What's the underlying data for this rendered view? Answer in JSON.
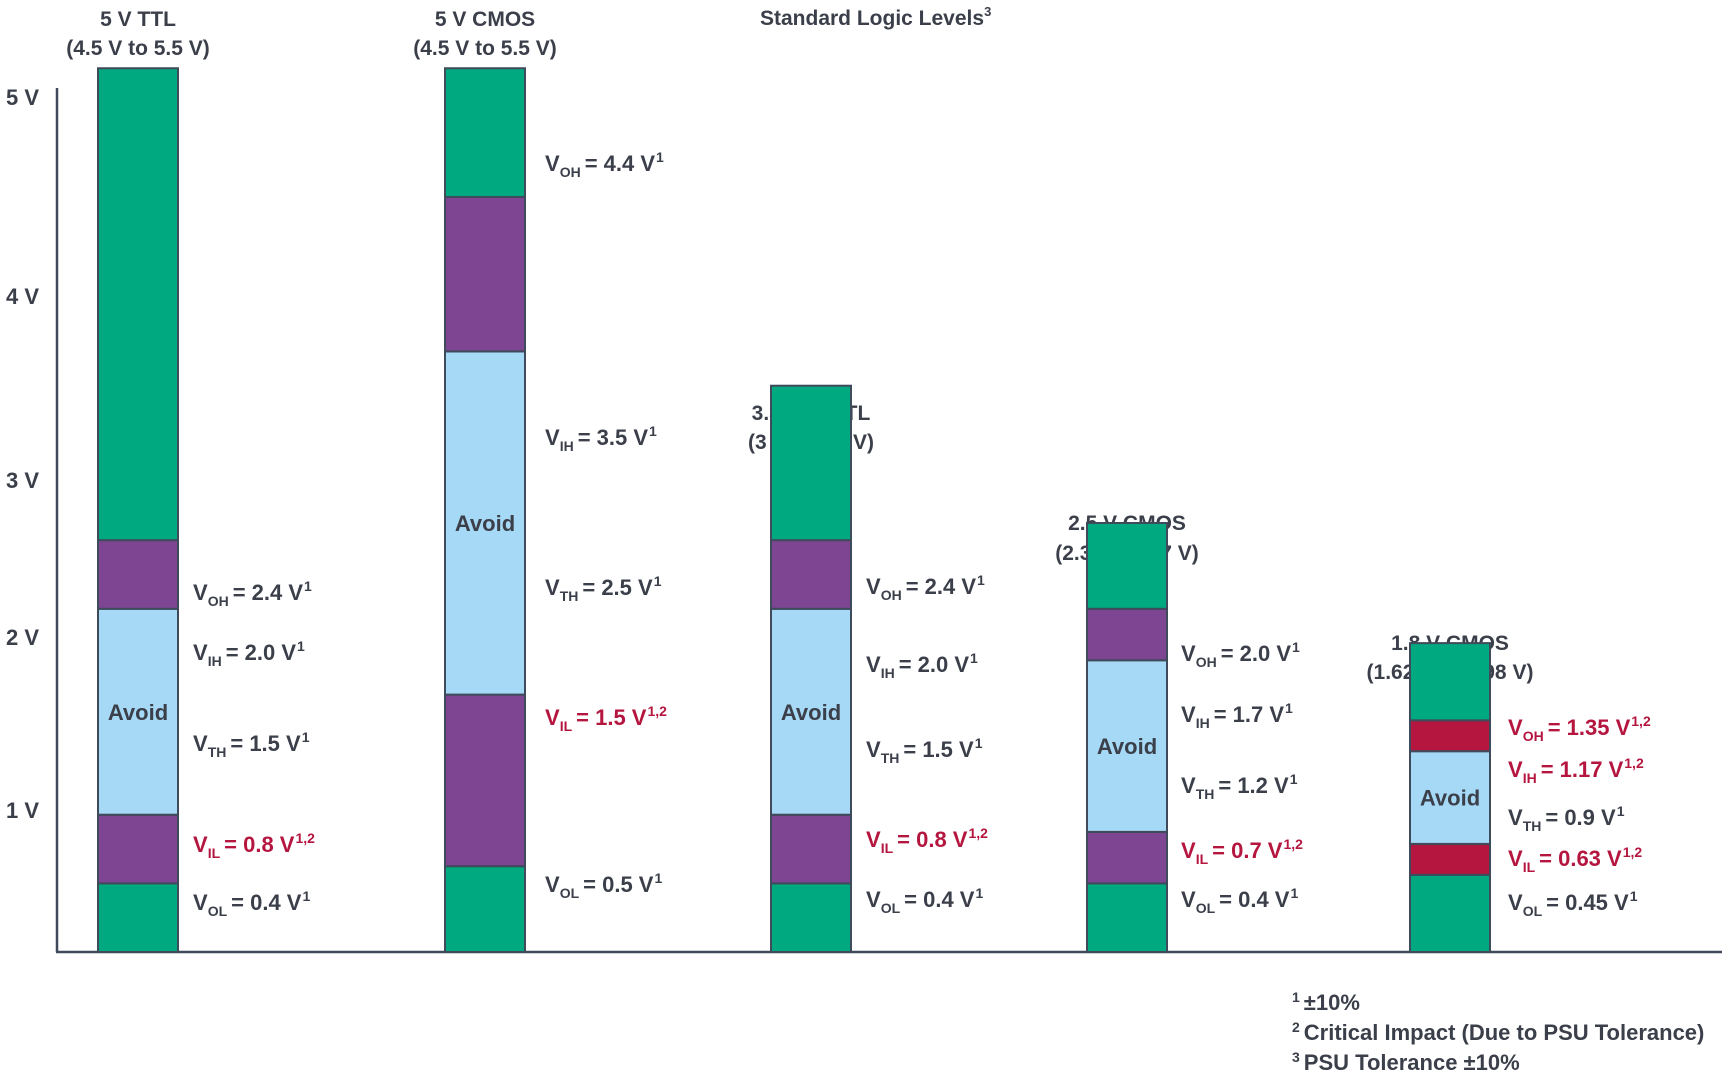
{
  "colors": {
    "green": "#00a97f",
    "purple": "#7e4593",
    "avoid": "#a6d9f5",
    "critical": "#b5163f",
    "border": "#3f4a5a",
    "text": "#3b3f4a"
  },
  "title": "Standard Logic Levels",
  "title_sup": "3",
  "y_axis": {
    "ticks": [
      {
        "value": 1,
        "label": "1 V"
      },
      {
        "value": 2,
        "label": "2 V"
      },
      {
        "value": 3,
        "label": "3 V"
      },
      {
        "value": 4,
        "label": "4 V"
      },
      {
        "value": 5,
        "label": "5 V"
      }
    ]
  },
  "families": [
    {
      "id": "ttl5",
      "name": "5 V TTL",
      "range": "(4.5 V to 5.5 V)",
      "top_v": 5.15,
      "segments": [
        {
          "from": 0,
          "to": 0.4,
          "kind": "green"
        },
        {
          "from": 0.4,
          "to": 0.8,
          "kind": "purple"
        },
        {
          "from": 0.8,
          "to": 2.0,
          "kind": "avoid",
          "text": "Avoid"
        },
        {
          "from": 2.0,
          "to": 2.4,
          "kind": "purple"
        },
        {
          "from": 2.4,
          "to": 5.15,
          "kind": "green"
        }
      ],
      "levels": [
        {
          "sym": "V",
          "sub": "OH",
          "val": "= 2.4 V",
          "sup": "1",
          "critical": false
        },
        {
          "sym": "V",
          "sub": "IH",
          "val": "= 2.0 V",
          "sup": "1",
          "critical": false
        },
        {
          "sym": "V",
          "sub": "TH",
          "val": "= 1.5 V",
          "sup": "1",
          "critical": false
        },
        {
          "sym": "V",
          "sub": "IL",
          "val": "= 0.8 V",
          "sup": "1,2",
          "critical": true
        },
        {
          "sym": "V",
          "sub": "OL",
          "val": "= 0.4 V",
          "sup": "1",
          "critical": false
        }
      ]
    },
    {
      "id": "cmos5",
      "name": "5 V CMOS",
      "range": "(4.5 V to 5.5 V)",
      "top_v": 5.15,
      "segments": [
        {
          "from": 0,
          "to": 0.5,
          "kind": "green"
        },
        {
          "from": 0.5,
          "to": 1.5,
          "kind": "purple"
        },
        {
          "from": 1.5,
          "to": 3.5,
          "kind": "avoid",
          "text": "Avoid"
        },
        {
          "from": 3.5,
          "to": 4.4,
          "kind": "purple"
        },
        {
          "from": 4.4,
          "to": 5.15,
          "kind": "green"
        }
      ],
      "levels": [
        {
          "sym": "V",
          "sub": "OH",
          "val": "= 4.4 V",
          "sup": "1",
          "critical": false
        },
        {
          "sym": "V",
          "sub": "IH",
          "val": "= 3.5 V",
          "sup": "1",
          "critical": false
        },
        {
          "sym": "V",
          "sub": "TH",
          "val": "= 2.5 V",
          "sup": "1",
          "critical": false
        },
        {
          "sym": "V",
          "sub": "IL",
          "val": "= 1.5 V",
          "sup": "1,2",
          "critical": true
        },
        {
          "sym": "V",
          "sub": "OL",
          "val": "= 0.5 V",
          "sup": "1",
          "critical": false
        }
      ]
    },
    {
      "id": "lvttl33",
      "name": "3.3 V LVTTL",
      "range": "(3 V to 3.6 V)",
      "top_v": 3.3,
      "segments": [
        {
          "from": 0,
          "to": 0.4,
          "kind": "green"
        },
        {
          "from": 0.4,
          "to": 0.8,
          "kind": "purple"
        },
        {
          "from": 0.8,
          "to": 2.0,
          "kind": "avoid",
          "text": "Avoid"
        },
        {
          "from": 2.0,
          "to": 2.4,
          "kind": "purple"
        },
        {
          "from": 2.4,
          "to": 3.3,
          "kind": "green"
        }
      ],
      "levels": [
        {
          "sym": "V",
          "sub": "OH",
          "val": "= 2.4 V",
          "sup": "1",
          "critical": false
        },
        {
          "sym": "V",
          "sub": "IH",
          "val": "= 2.0 V",
          "sup": "1",
          "critical": false
        },
        {
          "sym": "V",
          "sub": "TH",
          "val": "= 1.5 V",
          "sup": "1",
          "critical": false
        },
        {
          "sym": "V",
          "sub": "IL",
          "val": "= 0.8 V",
          "sup": "1,2",
          "critical": true
        },
        {
          "sym": "V",
          "sub": "OL",
          "val": "= 0.4 V",
          "sup": "1",
          "critical": false
        }
      ]
    },
    {
      "id": "cmos25",
      "name": "2.5 V CMOS",
      "range": "(2.3 V to 2.7 V)",
      "top_v": 2.5,
      "segments": [
        {
          "from": 0,
          "to": 0.4,
          "kind": "green"
        },
        {
          "from": 0.4,
          "to": 0.7,
          "kind": "purple"
        },
        {
          "from": 0.7,
          "to": 1.7,
          "kind": "avoid",
          "text": "Avoid"
        },
        {
          "from": 1.7,
          "to": 2.0,
          "kind": "purple"
        },
        {
          "from": 2.0,
          "to": 2.5,
          "kind": "green"
        }
      ],
      "levels": [
        {
          "sym": "V",
          "sub": "OH",
          "val": "= 2.0 V",
          "sup": "1",
          "critical": false
        },
        {
          "sym": "V",
          "sub": "IH",
          "val": "= 1.7 V",
          "sup": "1",
          "critical": false
        },
        {
          "sym": "V",
          "sub": "TH",
          "val": "= 1.2 V",
          "sup": "1",
          "critical": false
        },
        {
          "sym": "V",
          "sub": "IL",
          "val": "= 0.7 V",
          "sup": "1,2",
          "critical": true
        },
        {
          "sym": "V",
          "sub": "OL",
          "val": "= 0.4 V",
          "sup": "1",
          "critical": false
        }
      ]
    },
    {
      "id": "cmos18",
      "name": "1.8 V CMOS",
      "range": "(1.62 V to 1.98 V)",
      "top_v": 1.8,
      "segments": [
        {
          "from": 0,
          "to": 0.45,
          "kind": "green"
        },
        {
          "from": 0.45,
          "to": 0.63,
          "kind": "critical"
        },
        {
          "from": 0.63,
          "to": 1.17,
          "kind": "avoid",
          "text": "Avoid"
        },
        {
          "from": 1.17,
          "to": 1.35,
          "kind": "critical"
        },
        {
          "from": 1.35,
          "to": 1.8,
          "kind": "green"
        }
      ],
      "levels": [
        {
          "sym": "V",
          "sub": "OH",
          "val": "= 1.35 V",
          "sup": "1,2",
          "critical": true
        },
        {
          "sym": "V",
          "sub": "IH",
          "val": "= 1.17 V",
          "sup": "1,2",
          "critical": true
        },
        {
          "sym": "V",
          "sub": "TH",
          "val": "= 0.9 V",
          "sup": "1",
          "critical": false
        },
        {
          "sym": "V",
          "sub": "IL",
          "val": "= 0.63 V",
          "sup": "1,2",
          "critical": true
        },
        {
          "sym": "V",
          "sub": "OL",
          "val": "= 0.45 V",
          "sup": "1",
          "critical": false
        }
      ]
    }
  ],
  "footnotes": [
    {
      "mark": "1",
      "text": "±10%"
    },
    {
      "mark": "2",
      "text": "Critical Impact (Due to PSU Tolerance)"
    },
    {
      "mark": "3",
      "text": "PSU Tolerance ±10%"
    }
  ]
}
